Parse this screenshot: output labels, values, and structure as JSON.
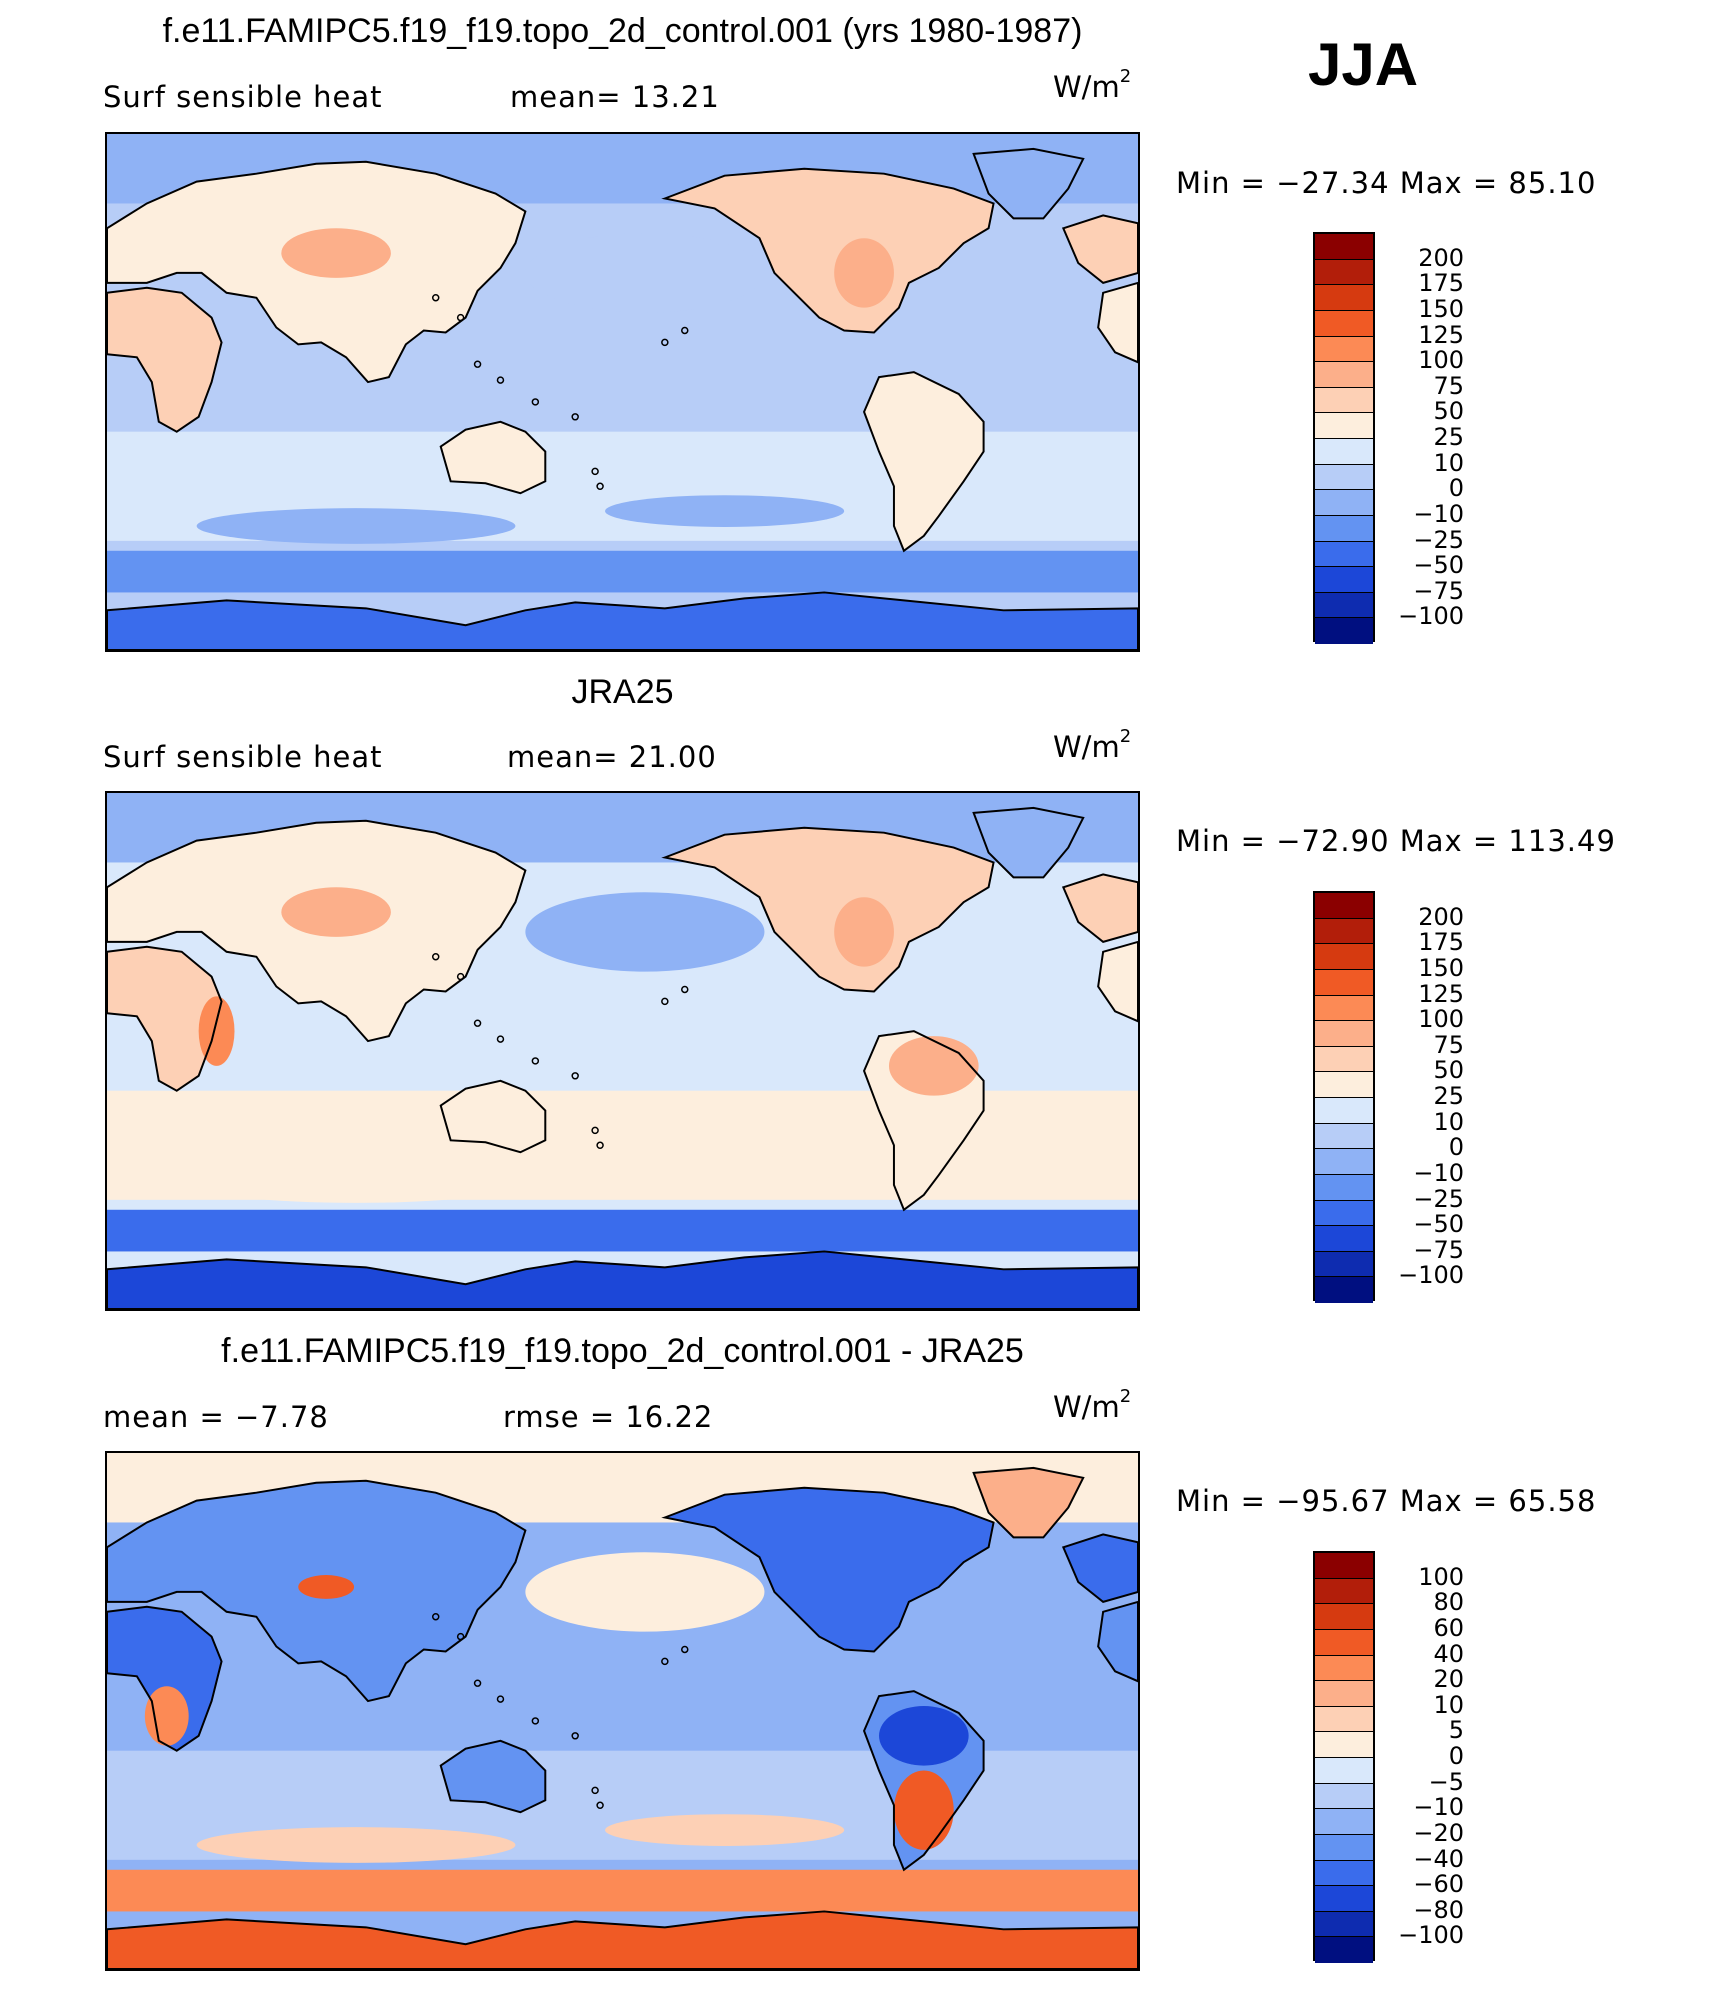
{
  "season": "JJA",
  "panels": [
    {
      "title": "f.e11.FAMIPC5.f19_f19.topo_2d_control.001 (yrs 1980-1987)",
      "left_label": "Surf  sensible  heat",
      "stat_label": "mean=   13.21",
      "unit": "W/m",
      "unit_exp": "2",
      "minmax": "Min  =  −27.34  Max  =    85.10",
      "colorbar_labels": [
        "200",
        "175",
        "150",
        "125",
        "100",
        "75",
        "50",
        "25",
        "10",
        "0",
        "−10",
        "−25",
        "−50",
        "−75",
        "−100"
      ],
      "colorbar_colors": [
        "#8b0000",
        "#b21e0a",
        "#d63a10",
        "#f05a25",
        "#fc8a55",
        "#fcaf8a",
        "#fdd0b5",
        "#fdeedd",
        "#d9e8fb",
        "#b7cdf7",
        "#8fb2f5",
        "#6393f2",
        "#3a6cec",
        "#1c47d8",
        "#0e2cb0",
        "#000f80"
      ],
      "field": "model"
    },
    {
      "title": "JRA25",
      "left_label": "Surf  sensible  heat",
      "stat_label": "mean=   21.00",
      "unit": "W/m",
      "unit_exp": "2",
      "minmax": "Min  =  −72.90  Max  =  113.49",
      "colorbar_labels": [
        "200",
        "175",
        "150",
        "125",
        "100",
        "75",
        "50",
        "25",
        "10",
        "0",
        "−10",
        "−25",
        "−50",
        "−75",
        "−100"
      ],
      "colorbar_colors": [
        "#8b0000",
        "#b21e0a",
        "#d63a10",
        "#f05a25",
        "#fc8a55",
        "#fcaf8a",
        "#fdd0b5",
        "#fdeedd",
        "#d9e8fb",
        "#b7cdf7",
        "#8fb2f5",
        "#6393f2",
        "#3a6cec",
        "#1c47d8",
        "#0e2cb0",
        "#000f80"
      ],
      "field": "obs"
    },
    {
      "title": "f.e11.FAMIPC5.f19_f19.topo_2d_control.001 - JRA25",
      "left_label": "mean  =    −7.78",
      "stat_label": "rmse  =    16.22",
      "unit": "W/m",
      "unit_exp": "2",
      "minmax": "Min  =  −95.67  Max  =    65.58",
      "colorbar_labels": [
        "100",
        "80",
        "60",
        "40",
        "20",
        "10",
        "5",
        "0",
        "−5",
        "−10",
        "−20",
        "−40",
        "−60",
        "−80",
        "−100"
      ],
      "colorbar_colors": [
        "#8b0000",
        "#b21e0a",
        "#d63a10",
        "#f05a25",
        "#fc8a55",
        "#fcaf8a",
        "#fdd0b5",
        "#fdeedd",
        "#d9e8fb",
        "#b7cdf7",
        "#8fb2f5",
        "#6393f2",
        "#3a6cec",
        "#1c47d8",
        "#0e2cb0",
        "#000f80"
      ],
      "field": "diff"
    }
  ]
}
